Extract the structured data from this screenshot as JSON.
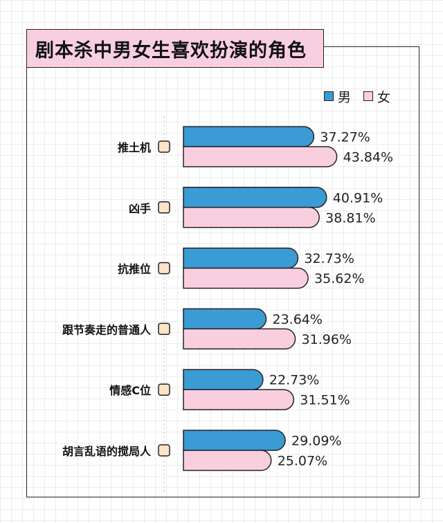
{
  "title": "剧本杀中男女生喜欢扮演的角色",
  "colors": {
    "male": "#3a9bd5",
    "female": "#f9cfe0",
    "marker": "#fde3c8",
    "stroke": "#222222"
  },
  "chart_data": {
    "type": "bar",
    "orientation": "horizontal",
    "title": "剧本杀中男女生喜欢扮演的角色",
    "categories": [
      "推土机",
      "凶手",
      "抗推位",
      "跟节奏走的普通人",
      "情感C位",
      "胡言乱语的搅局人"
    ],
    "series": [
      {
        "name": "男",
        "values": [
          37.27,
          40.91,
          32.73,
          23.64,
          22.73,
          29.09
        ]
      },
      {
        "name": "女",
        "values": [
          43.84,
          38.81,
          35.62,
          31.96,
          31.51,
          25.07
        ]
      }
    ],
    "value_suffix": "%",
    "xlim": [
      0,
      50
    ],
    "legend_position": "top-right",
    "grid": true
  }
}
